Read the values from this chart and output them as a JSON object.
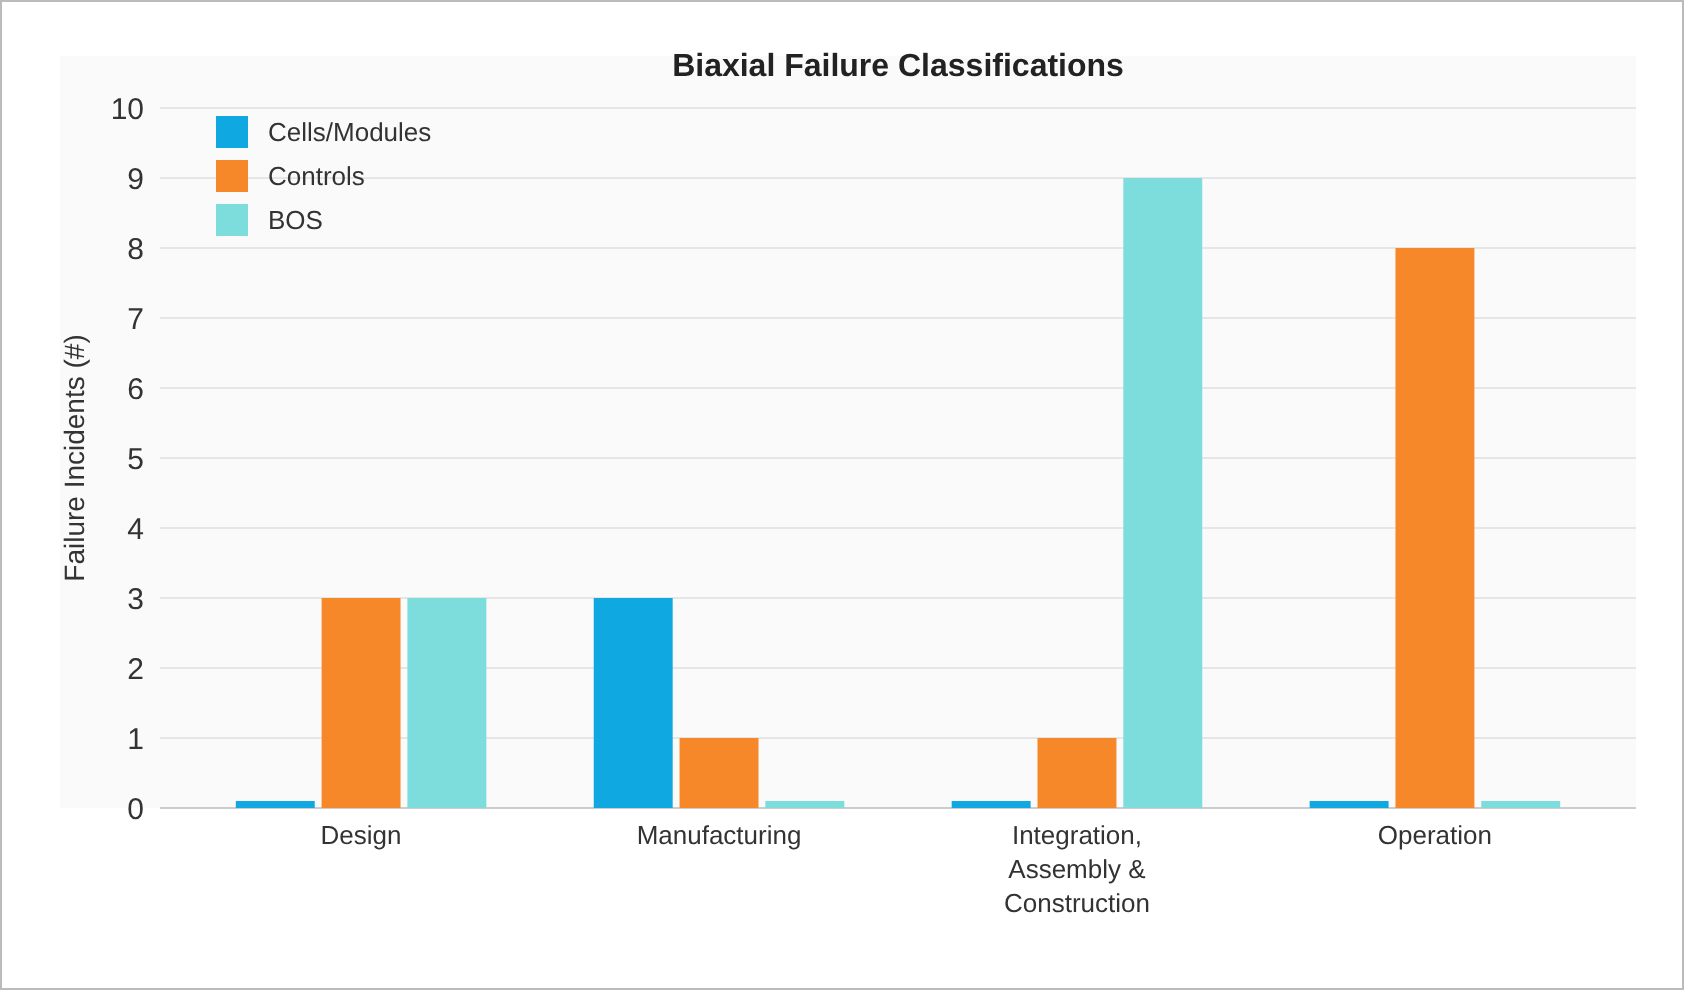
{
  "chart_data": {
    "type": "bar",
    "title": "Biaxial Failure Classifications",
    "ylabel": "Failure Incidents (#)",
    "categories": [
      "Design",
      "Manufacturing",
      "Integration, Assembly & Construction",
      "Operation"
    ],
    "series": [
      {
        "name": "Cells/Modules",
        "color": "#10a8e0",
        "values": [
          0.1,
          3,
          0.1,
          0.1
        ]
      },
      {
        "name": "Controls",
        "color": "#f7882a",
        "values": [
          3,
          1,
          1,
          8
        ]
      },
      {
        "name": "BOS",
        "color": "#7ddcdc",
        "values": [
          3,
          0.1,
          9,
          0.1
        ]
      }
    ],
    "ylim": [
      0,
      10
    ],
    "yticks": [
      0,
      1,
      2,
      3,
      4,
      5,
      6,
      7,
      8,
      9,
      10
    ],
    "grid": "y",
    "legend": "top left"
  }
}
